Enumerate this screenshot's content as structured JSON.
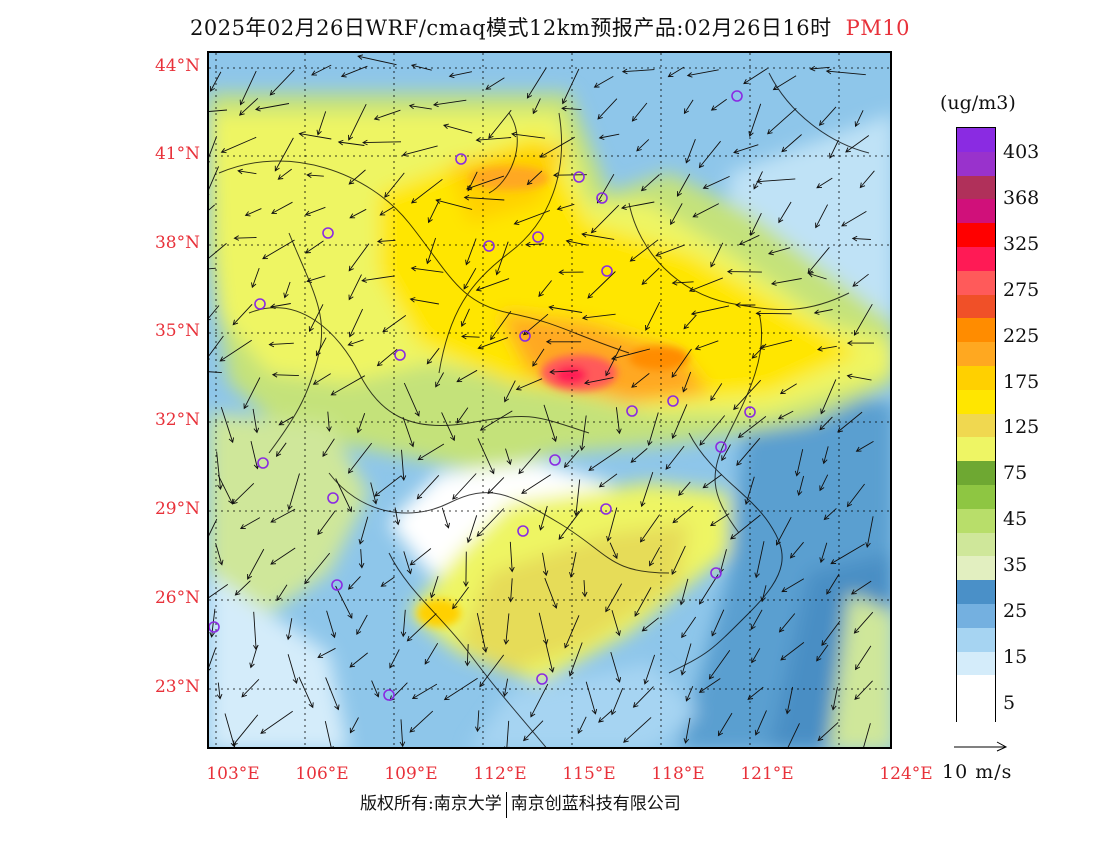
{
  "title": {
    "main": "2025年02月26日WRF/cmaq模式12km预报产品:02月26日16时",
    "species": "PM10"
  },
  "latitude_labels": [
    "44°N",
    "41°N",
    "38°N",
    "35°N",
    "32°N",
    "29°N",
    "26°N",
    "23°N"
  ],
  "longitude_labels": [
    "103°E",
    "106°E",
    "109°E",
    "112°E",
    "115°E",
    "118°E",
    "121°E",
    "124°E"
  ],
  "legend": {
    "units": "(ug/m3)",
    "labels": [
      "403",
      "368",
      "325",
      "275",
      "225",
      "175",
      "125",
      "75",
      "45",
      "35",
      "25",
      "15",
      "5"
    ],
    "colors": [
      "#8a2be2",
      "#9932cc",
      "#b0305a",
      "#d0107a",
      "#ff0000",
      "#ff1a55",
      "#ff5a5a",
      "#f05028",
      "#ff8c00",
      "#ffa820",
      "#ffd000",
      "#ffe600",
      "#f0d850",
      "#eef564",
      "#6ea832",
      "#8ec642",
      "#b8de6a",
      "#cfe79a",
      "#e2efc0",
      "#4a90c8",
      "#74b0e0",
      "#a6d4f2",
      "#d4ecfa",
      "#ffffff",
      "#ffffff"
    ]
  },
  "vector_scale": {
    "label": "10 m/s"
  },
  "copyright": {
    "left": "版权所有:南京大学",
    "right": "南京创蓝科技有限公司"
  }
}
